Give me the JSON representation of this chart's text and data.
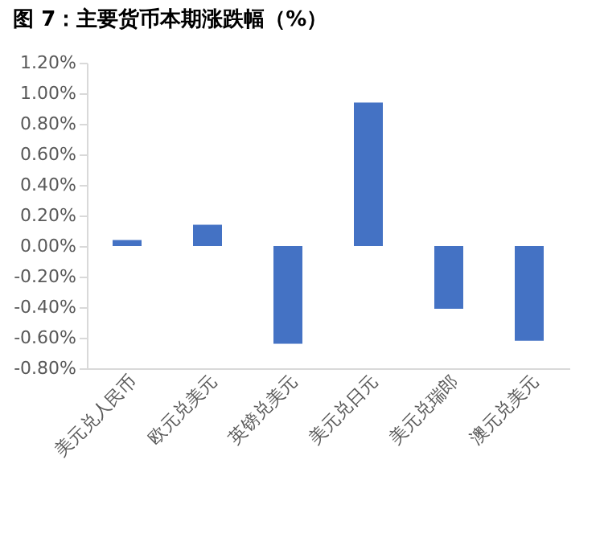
{
  "chart_data": {
    "type": "bar",
    "title": "图 7：主要货币本期涨跌幅（%）",
    "categories": [
      "美元兑人民币",
      "欧元兑美元",
      "英镑兑美元",
      "美元兑日元",
      "美元兑瑞郎",
      "澳元兑美元"
    ],
    "values": [
      0.04,
      0.14,
      -0.64,
      0.94,
      -0.41,
      -0.62
    ],
    "color": "#4472c4",
    "ylim": [
      -0.8,
      1.2
    ],
    "yticks": [
      {
        "value": -0.8,
        "label": "-0.80%"
      },
      {
        "value": -0.6,
        "label": "-0.60%"
      },
      {
        "value": -0.4,
        "label": "-0.40%"
      },
      {
        "value": -0.2,
        "label": "-0.20%"
      },
      {
        "value": 0,
        "label": "0.00%"
      },
      {
        "value": 0.2,
        "label": "0.20%"
      },
      {
        "value": 0.4,
        "label": "0.40%"
      },
      {
        "value": 0.6,
        "label": "0.60%"
      },
      {
        "value": 0.8,
        "label": "0.80%"
      },
      {
        "value": 1.0,
        "label": "1.00%"
      },
      {
        "value": 1.2,
        "label": "1.20%"
      }
    ],
    "grid": false
  }
}
